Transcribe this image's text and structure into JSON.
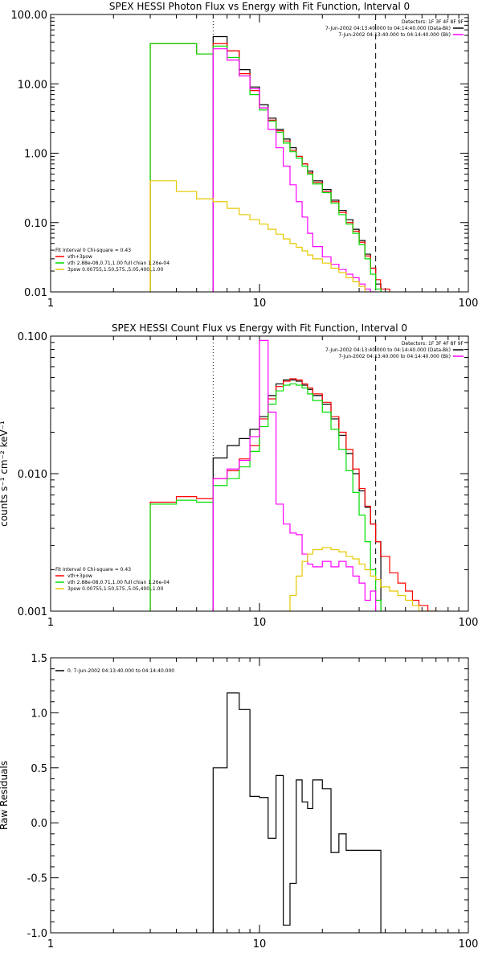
{
  "chart_data": [
    {
      "type": "line",
      "title": "SPEX HESSI Photon Flux vs Energy with Fit Function, Interval 0",
      "xscale": "log",
      "yscale": "log",
      "xlim": [
        1,
        100
      ],
      "ylim": [
        0.01,
        100
      ],
      "xticks": [
        {
          "v": 1,
          "label": "1"
        },
        {
          "v": 10,
          "label": "10"
        },
        {
          "v": 100,
          "label": "100"
        }
      ],
      "yticks": [
        {
          "v": 0.01,
          "label": "0.01"
        },
        {
          "v": 0.1,
          "label": "0.10"
        },
        {
          "v": 1,
          "label": "1.00"
        },
        {
          "v": 10,
          "label": "10.00"
        },
        {
          "v": 100,
          "label": "100.00"
        }
      ],
      "vlines": [
        {
          "x": 6,
          "style": "dotted"
        },
        {
          "x": 36,
          "style": "dashed"
        }
      ],
      "info_lines": [
        "Detectors: 1F 3F 4F 8F 9F",
        "7-Jun-2002 04:13:40.000 to 04:14:40.000 (Data-Bk)",
        "7-Jun-2002 04:13:40.000 to 04:14:40.000 (Bk)"
      ],
      "info_swatches": [
        "",
        "#000000",
        "#ff00ff"
      ],
      "legend_lines": [
        "Fit Interval 0   Chi-square = 0.43",
        "vth+3pow",
        "vth 2.88e-08,0.71,1.00  full chian 1.26e-04",
        "3pow 0.00755,1.50,575.,5.05,400.,1.00"
      ],
      "legend_swatches": [
        "",
        "#ff0000",
        "#00dd00",
        "#e6c800"
      ],
      "series": [
        {
          "color": "#000000",
          "x": [
            6,
            7,
            8,
            9,
            10,
            11,
            12,
            13,
            14,
            15,
            16,
            17,
            18,
            20,
            22,
            24,
            26,
            28,
            30,
            32,
            34,
            36
          ],
          "y": [
            48,
            30,
            16,
            9,
            5,
            3.2,
            2.2,
            1.6,
            1.2,
            0.9,
            0.7,
            0.55,
            0.4,
            0.3,
            0.21,
            0.15,
            0.11,
            0.08,
            0.055,
            0.035,
            0.022,
            0.013
          ]
        },
        {
          "color": "#ff0000",
          "x": [
            3,
            4,
            5,
            6,
            7,
            8,
            9,
            10,
            11,
            12,
            13,
            14,
            15,
            16,
            17,
            18,
            20,
            22,
            24,
            26,
            28,
            30,
            32,
            34,
            36,
            38,
            42
          ],
          "y": [
            38,
            38,
            27,
            38,
            30,
            14,
            8,
            4.5,
            3,
            2.1,
            1.5,
            1.1,
            0.9,
            0.7,
            0.52,
            0.38,
            0.28,
            0.2,
            0.14,
            0.1,
            0.075,
            0.052,
            0.033,
            0.022,
            0.015,
            0.011,
            0.007
          ]
        },
        {
          "color": "#00dd00",
          "x": [
            3,
            4,
            5,
            6,
            7,
            8,
            9,
            10,
            11,
            12,
            13,
            14,
            15,
            16,
            17,
            18,
            20,
            22,
            24,
            26,
            28,
            30,
            32,
            34,
            36
          ],
          "y": [
            38,
            38,
            27,
            35,
            24,
            13,
            7,
            4.2,
            2.9,
            2,
            1.4,
            1.05,
            0.85,
            0.65,
            0.5,
            0.36,
            0.27,
            0.19,
            0.13,
            0.095,
            0.07,
            0.048,
            0.03,
            0.018,
            0.011
          ]
        },
        {
          "color": "#ff00ff",
          "x": [
            6,
            7,
            8,
            9,
            10,
            11,
            12,
            13,
            14,
            15,
            16,
            17,
            18,
            20,
            22,
            24,
            26,
            28,
            30,
            32,
            34,
            36
          ],
          "y": [
            32,
            22,
            13,
            8.5,
            4.5,
            2.2,
            1.2,
            0.65,
            0.35,
            0.2,
            0.12,
            0.07,
            0.045,
            0.032,
            0.025,
            0.021,
            0.018,
            0.016,
            0.013,
            0.011,
            0.01,
            0.009
          ]
        },
        {
          "color": "#e6c800",
          "x": [
            3,
            4,
            5,
            6,
            7,
            8,
            9,
            10,
            11,
            12,
            13,
            14,
            15,
            16,
            17,
            18,
            20,
            22,
            24,
            26,
            28,
            30,
            32,
            34
          ],
          "y": [
            0.4,
            0.28,
            0.22,
            0.2,
            0.16,
            0.13,
            0.11,
            0.095,
            0.08,
            0.068,
            0.058,
            0.05,
            0.044,
            0.039,
            0.034,
            0.03,
            0.026,
            0.022,
            0.019,
            0.016,
            0.014,
            0.012,
            0.01,
            0.009
          ]
        }
      ]
    },
    {
      "type": "line",
      "title": "SPEX HESSI Count Flux vs Energy with Fit Function, Interval 0",
      "ylabel": "counts s⁻¹ cm⁻² keV⁻¹",
      "xscale": "log",
      "yscale": "log",
      "xlim": [
        1,
        100
      ],
      "ylim": [
        0.001,
        0.1
      ],
      "xticks": [
        {
          "v": 1,
          "label": "1"
        },
        {
          "v": 10,
          "label": "10"
        },
        {
          "v": 100,
          "label": "100"
        }
      ],
      "yticks": [
        {
          "v": 0.001,
          "label": "0.001"
        },
        {
          "v": 0.01,
          "label": "0.010"
        },
        {
          "v": 0.1,
          "label": "0.100"
        }
      ],
      "vlines": [
        {
          "x": 6,
          "style": "dotted"
        },
        {
          "x": 36,
          "style": "dashed"
        }
      ],
      "info_lines": [
        "Detectors: 1F 3F 4F 8F 9F",
        "7-Jun-2002 04:13:40.000 to 04:14:40.000 (Data-Bk)",
        "7-Jun-2002 04:13:40.000 to 04:14:40.000 (Bk)"
      ],
      "info_swatches": [
        "",
        "#000000",
        "#ff00ff"
      ],
      "legend_lines": [
        "Fit Interval 0   Chi-square = 0.43",
        "vth+3pow",
        "vth 2.88e-08,0.71,1.00  full chian 1.26e-04",
        "3pow 0.00755,1.50,575.,5.05,400.,1.00"
      ],
      "legend_swatches": [
        "",
        "#ff0000",
        "#00dd00",
        "#e6c800"
      ],
      "series": [
        {
          "color": "#000000",
          "x": [
            6,
            7,
            8,
            9,
            10,
            11,
            12,
            13,
            14,
            15,
            16,
            17,
            18,
            20,
            22,
            24,
            26,
            28,
            30,
            32,
            34,
            36
          ],
          "y": [
            0.013,
            0.016,
            0.018,
            0.021,
            0.026,
            0.037,
            0.045,
            0.048,
            0.048,
            0.047,
            0.044,
            0.041,
            0.037,
            0.032,
            0.025,
            0.019,
            0.014,
            0.01,
            0.0075,
            0.0057,
            0.0043,
            0.0032
          ]
        },
        {
          "color": "#ff0000",
          "x": [
            3,
            4,
            5,
            6,
            7,
            8,
            9,
            10,
            11,
            12,
            13,
            14,
            15,
            16,
            17,
            18,
            20,
            22,
            24,
            26,
            28,
            30,
            32,
            34,
            36,
            38,
            42,
            46,
            50,
            54,
            58,
            64
          ],
          "y": [
            0.0062,
            0.0068,
            0.0066,
            0.0092,
            0.0105,
            0.0128,
            0.016,
            0.025,
            0.035,
            0.043,
            0.047,
            0.049,
            0.048,
            0.045,
            0.042,
            0.038,
            0.033,
            0.026,
            0.02,
            0.015,
            0.0108,
            0.0078,
            0.0058,
            0.0043,
            0.0032,
            0.0025,
            0.0019,
            0.0016,
            0.0014,
            0.0012,
            0.0011,
            0.001
          ]
        },
        {
          "color": "#00dd00",
          "x": [
            3,
            4,
            5,
            6,
            7,
            8,
            9,
            10,
            11,
            12,
            13,
            14,
            15,
            16,
            17,
            18,
            20,
            22,
            24,
            26,
            28,
            30,
            32,
            34,
            36
          ],
          "y": [
            0.006,
            0.0064,
            0.0062,
            0.0082,
            0.0092,
            0.0112,
            0.0145,
            0.022,
            0.032,
            0.04,
            0.044,
            0.045,
            0.044,
            0.042,
            0.038,
            0.034,
            0.028,
            0.021,
            0.015,
            0.0105,
            0.0073,
            0.005,
            0.0032,
            0.002,
            0.0012
          ]
        },
        {
          "color": "#ff00ff",
          "x": [
            6,
            7,
            8,
            9,
            10,
            11,
            12,
            13,
            14,
            15,
            16,
            17,
            18,
            20,
            22,
            24,
            26,
            28,
            30,
            32,
            34,
            36
          ],
          "y": [
            0.0092,
            0.0108,
            0.0125,
            0.0186,
            0.093,
            0.028,
            0.006,
            0.0043,
            0.0037,
            0.0036,
            0.0026,
            0.0022,
            0.0021,
            0.0023,
            0.0021,
            0.0023,
            0.0021,
            0.0018,
            0.0016,
            0.0012,
            0.0014,
            0.0009
          ]
        },
        {
          "color": "#e6c800",
          "x": [
            13,
            14,
            15,
            16,
            17,
            18,
            20,
            22,
            24,
            26,
            28,
            30,
            32,
            34,
            36,
            38,
            42,
            46,
            50,
            54,
            58,
            64
          ],
          "y": [
            0.001,
            0.0013,
            0.0018,
            0.0023,
            0.0026,
            0.0028,
            0.0029,
            0.0028,
            0.0027,
            0.0025,
            0.0024,
            0.0022,
            0.002,
            0.0018,
            0.0017,
            0.0015,
            0.0014,
            0.0013,
            0.0012,
            0.0011,
            0.001,
            0.001
          ]
        }
      ]
    },
    {
      "type": "line",
      "ylabel": "Raw Residuals",
      "xscale": "log",
      "yscale": "linear",
      "xlim": [
        1,
        100
      ],
      "ylim": [
        -1,
        1.5
      ],
      "xticks": [
        {
          "v": 1,
          "label": "1"
        },
        {
          "v": 10,
          "label": "10"
        },
        {
          "v": 100,
          "label": "100"
        }
      ],
      "yticks": [
        {
          "v": -1,
          "label": "-1.0"
        },
        {
          "v": -0.5,
          "label": "-0.5"
        },
        {
          "v": 0,
          "label": "0.0"
        },
        {
          "v": 0.5,
          "label": "0.5"
        },
        {
          "v": 1,
          "label": "1.0"
        },
        {
          "v": 1.5,
          "label": "1.5"
        }
      ],
      "vlines": [],
      "info_lines": [],
      "info_swatches": [],
      "legend_lines": [
        "0.  7-Jun-2002 04:13:40.000 to 04:14:40.000"
      ],
      "legend_swatches": [
        "#000000"
      ],
      "series": [
        {
          "color": "#000000",
          "x": [
            6,
            7,
            8,
            9,
            10,
            11,
            12,
            13,
            14,
            15,
            16,
            17,
            18,
            20,
            22,
            24,
            26,
            28,
            30,
            32,
            34,
            36
          ],
          "y": [
            0.5,
            1.18,
            1.03,
            0.24,
            0.23,
            -0.14,
            0.43,
            -0.93,
            -0.55,
            0.39,
            0.19,
            0.13,
            0.39,
            0.31,
            -0.27,
            -0.1,
            -0.25,
            -0.25,
            -0.25,
            -0.25,
            -0.25,
            -0.25
          ]
        }
      ]
    }
  ]
}
